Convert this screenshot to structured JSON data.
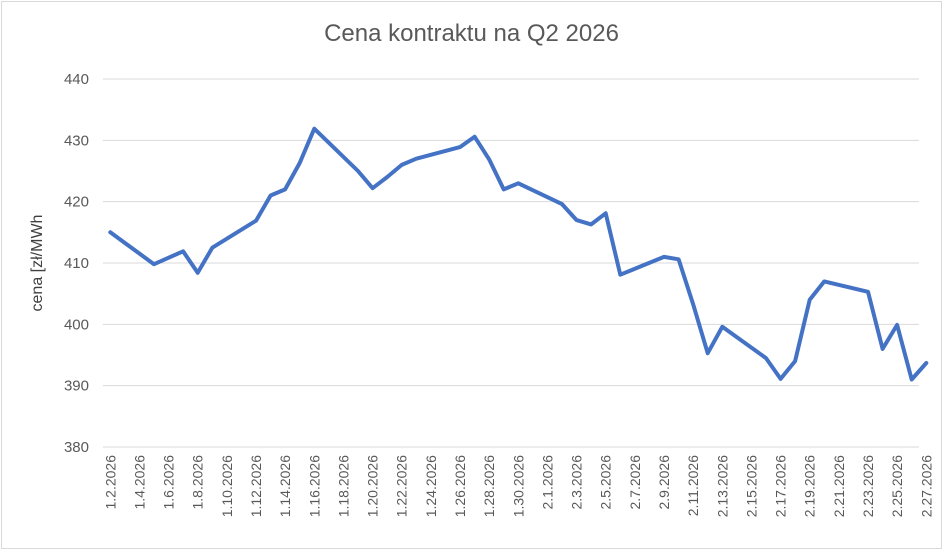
{
  "chart_data": {
    "type": "line",
    "title": "Cena kontraktu na Q2 2026",
    "ylabel": "cena [zł/MWh",
    "xlabel": "",
    "ylim": [
      380,
      440
    ],
    "yticks": [
      380,
      390,
      400,
      410,
      420,
      430,
      440
    ],
    "grid": true,
    "line_color": "#4472C4",
    "x_tick_labels": [
      "1.2.2026",
      "1.4.2026",
      "1.6.2026",
      "1.8.2026",
      "1.10.2026",
      "1.12.2026",
      "1.14.2026",
      "1.16.2026",
      "1.18.2026",
      "1.20.2026",
      "1.22.2026",
      "1.24.2026",
      "1.26.2026",
      "1.28.2026",
      "1.30.2026",
      "2.1.2026",
      "2.3.2026",
      "2.5.2026",
      "2.7.2026",
      "2.9.2026",
      "2.11.2026",
      "2.13.2026",
      "2.15.2026",
      "2.17.2026",
      "2.19.2026",
      "2.21.2026",
      "2.23.2026",
      "2.25.2026",
      "2.27.2026"
    ],
    "series": [
      {
        "x": [
          "1.2.2026",
          "1.5.2026",
          "1.7.2026",
          "1.8.2026",
          "1.9.2026",
          "1.12.2026",
          "1.13.2026",
          "1.14.2026",
          "1.15.2026",
          "1.16.2026",
          "1.19.2026",
          "1.20.2026",
          "1.21.2026",
          "1.22.2026",
          "1.23.2026",
          "1.26.2026",
          "1.27.2026",
          "1.28.2026",
          "1.29.2026",
          "1.30.2026",
          "2.2.2026",
          "2.3.2026",
          "2.4.2026",
          "2.5.2026",
          "2.6.2026",
          "2.9.2026",
          "2.10.2026",
          "2.11.2026",
          "2.12.2026",
          "2.13.2026",
          "2.16.2026",
          "2.17.2026",
          "2.18.2026",
          "2.19.2026",
          "2.20.2026",
          "2.23.2026",
          "2.24.2026",
          "2.25.2026",
          "2.26.2026",
          "2.27.2026"
        ],
        "values": [
          415,
          409.8,
          411.9,
          408.4,
          412.5,
          416.9,
          421,
          422,
          426.3,
          431.9,
          425,
          422.2,
          424,
          426,
          427,
          428.9,
          430.6,
          426.9,
          422,
          423,
          419.6,
          417,
          416.3,
          418.1,
          408.1,
          411,
          410.6,
          403.3,
          395.3,
          399.6,
          394.5,
          391.1,
          394,
          404,
          407,
          405.3,
          396,
          399.9,
          391,
          393.7
        ]
      }
    ]
  }
}
